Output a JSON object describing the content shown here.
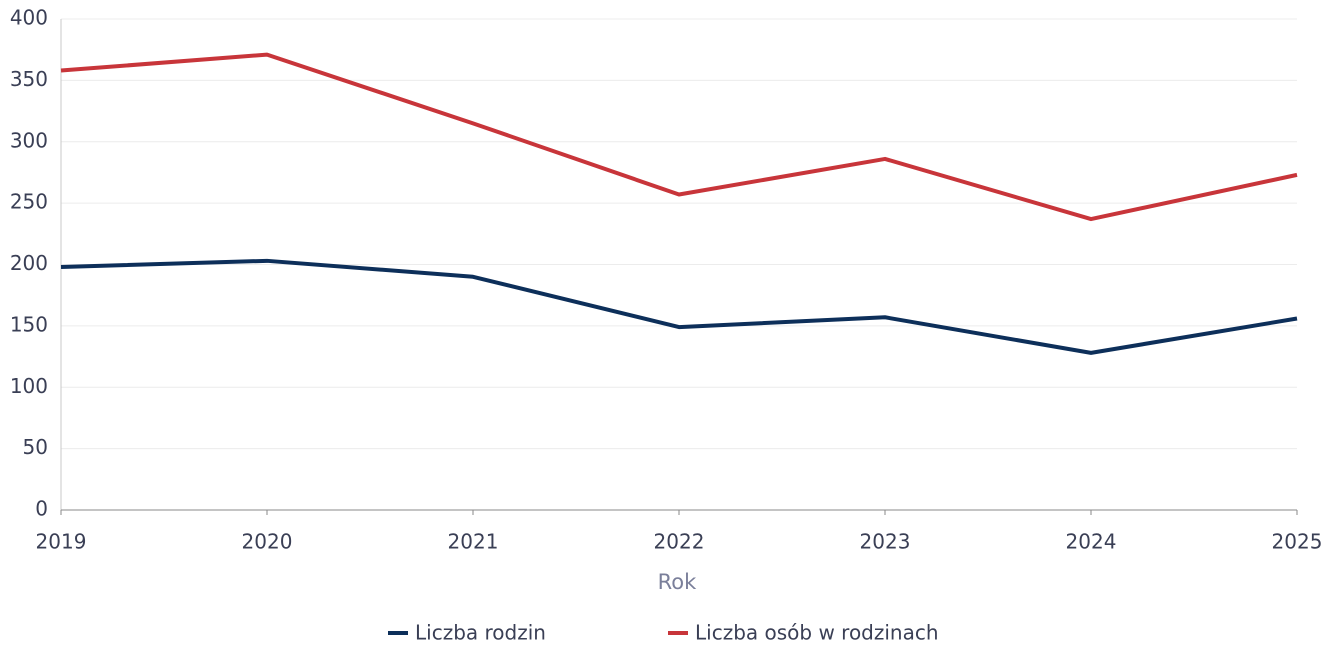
{
  "chart_data": {
    "type": "line",
    "x_label": "Rok",
    "x": [
      2019,
      2020,
      2021,
      2022,
      2023,
      2024,
      2025
    ],
    "xlim": [
      2019,
      2025
    ],
    "xticks": [
      2019,
      2020,
      2021,
      2022,
      2023,
      2024,
      2025
    ],
    "ylim": [
      0,
      400
    ],
    "yticks": [
      0,
      50,
      100,
      150,
      200,
      250,
      300,
      350,
      400
    ],
    "grid": true,
    "legend": "bottom",
    "series": [
      {
        "name": "Liczba rodzin",
        "color": "#0d2f5a",
        "values": [
          198,
          203,
          190,
          149,
          157,
          128,
          156
        ]
      },
      {
        "name": "Liczba osób w rodzinach",
        "color": "#c8353a",
        "values": [
          358,
          371,
          315,
          257,
          286,
          237,
          273
        ]
      }
    ]
  }
}
